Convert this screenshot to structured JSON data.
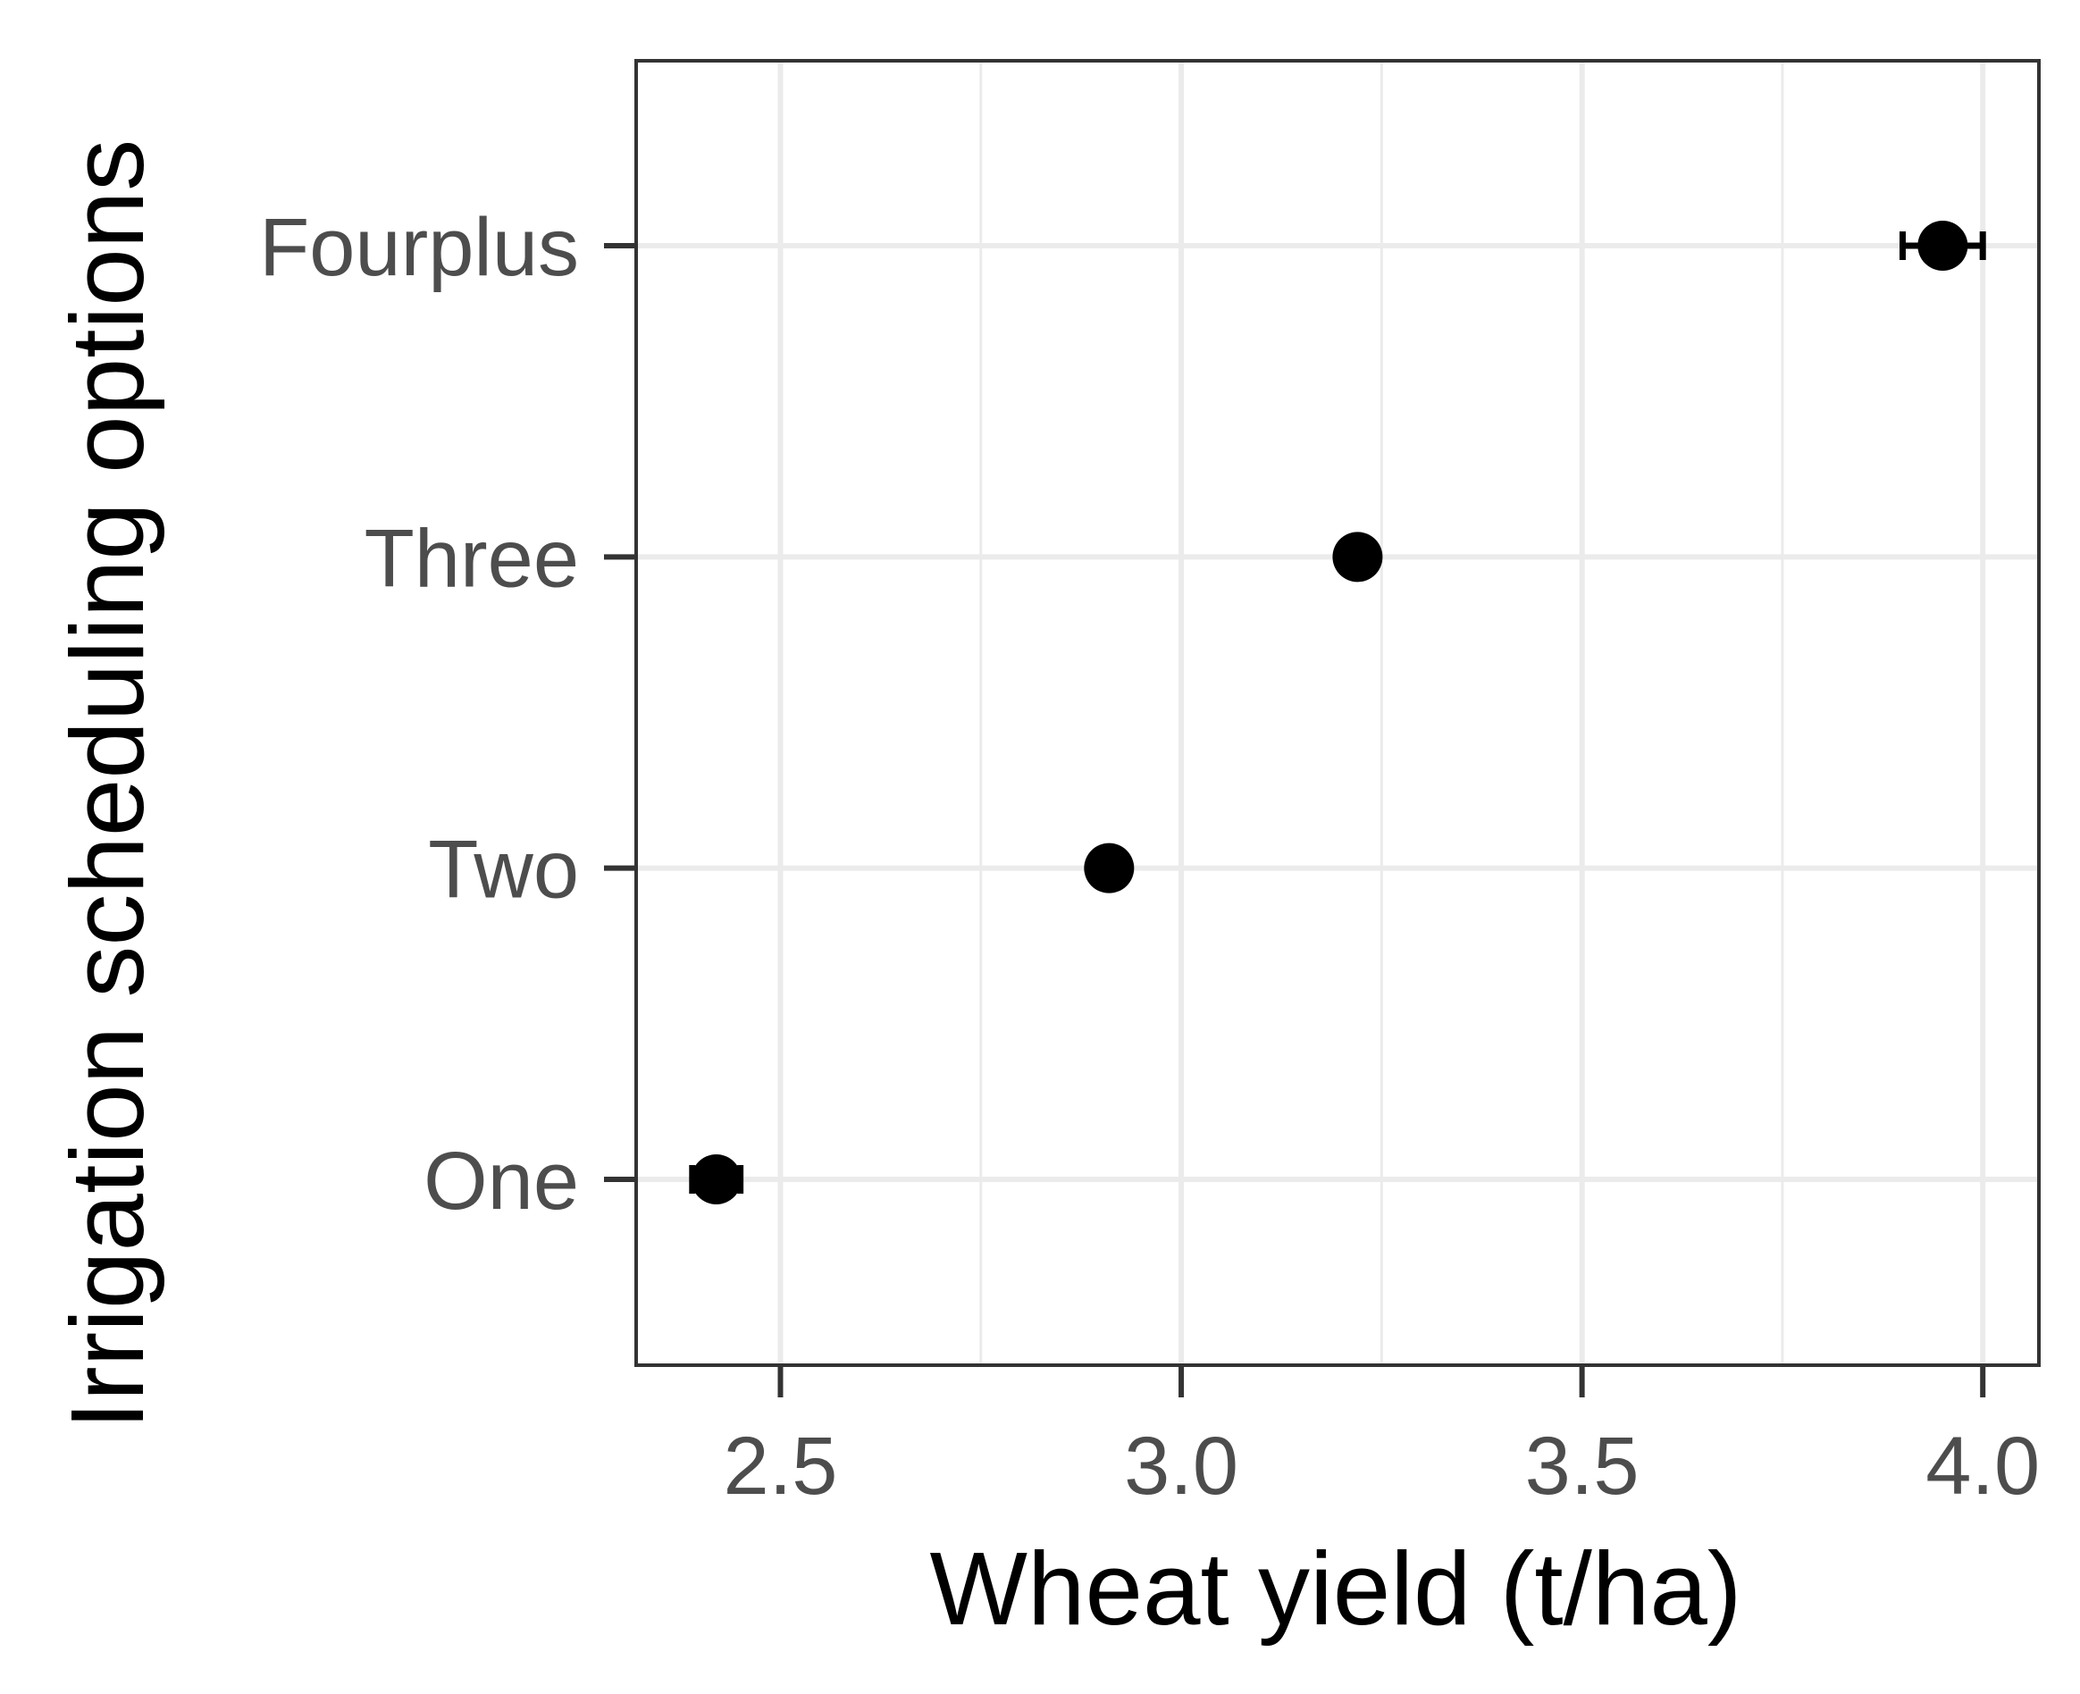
{
  "chart_data": {
    "type": "scatter",
    "xlabel": "Wheat yield (t/ha)",
    "ylabel": "Irrigation scheduling options",
    "categories": [
      "One",
      "Two",
      "Three",
      "Fourplus"
    ],
    "series": [
      {
        "values": [
          2.42,
          2.91,
          3.22,
          3.95
        ],
        "error": [
          0.03,
          0.01,
          0.01,
          0.05
        ]
      }
    ],
    "xlim": [
      2.32,
      4.07
    ],
    "xticks": [
      "2.5",
      "3.0",
      "3.5",
      "4.0"
    ],
    "xtick_values": [
      2.5,
      3.0,
      3.5,
      4.0
    ],
    "grid": true,
    "colors": {
      "point": "#000000",
      "grid": "#ebebeb",
      "panel_border": "#333333"
    }
  }
}
